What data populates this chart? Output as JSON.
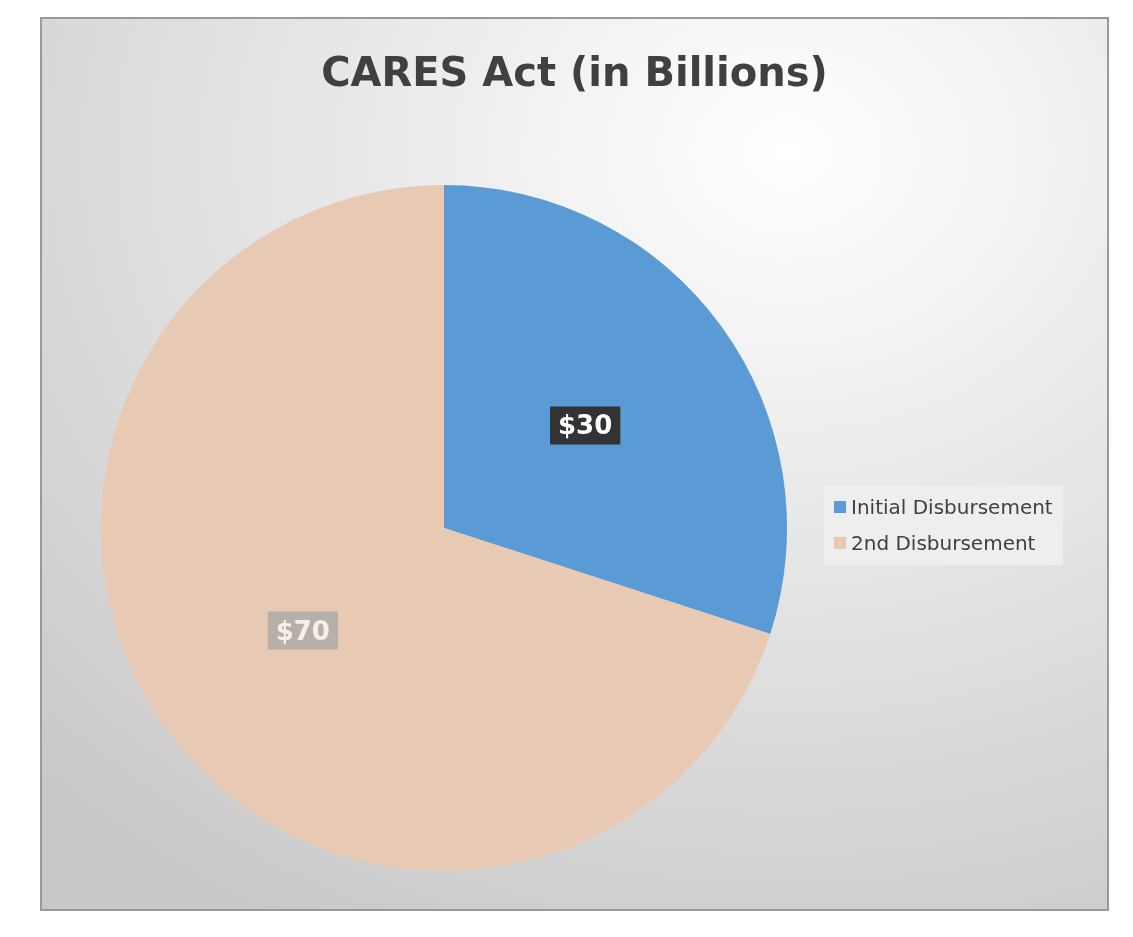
{
  "chart_data": {
    "type": "pie",
    "title": "CARES Act (in Billions)",
    "categories": [
      "Initial Disbursement",
      "2nd Disbursement"
    ],
    "values": [
      30,
      70
    ],
    "colors": [
      "#5b9bd5",
      "#e8c9b3"
    ],
    "value_labels": [
      "$30",
      "$70"
    ],
    "legend": "right"
  }
}
